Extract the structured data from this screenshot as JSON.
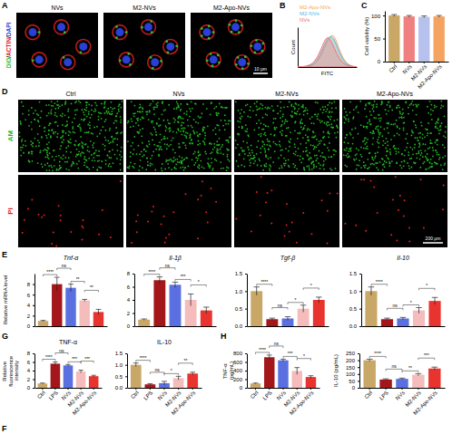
{
  "chart_data": [
    {
      "type": "image",
      "panel": "A",
      "titles": [
        "NVs",
        "M2-NVs",
        "M2-Apo-NVs"
      ],
      "stains": [
        {
          "name": "DiO",
          "color": "#33bb33"
        },
        {
          "name": "ACTIN",
          "color": "#e02020"
        },
        {
          "name": "DAPI",
          "color": "#2a3fd6"
        }
      ],
      "separator": "/",
      "scale_bar": "10 μm"
    },
    {
      "type": "line",
      "panel": "B",
      "xlabel": "FITC",
      "ylabel": "Count",
      "tick_labels": false,
      "legend": "upper left",
      "x": [
        0,
        10,
        20,
        30,
        40,
        50,
        60,
        70,
        80,
        90,
        100
      ],
      "xlim": [
        0,
        100
      ],
      "ylim": [
        0,
        100
      ],
      "series": [
        {
          "name": "M2-Apo-NVs",
          "color": "#f4a460",
          "values": [
            0,
            0,
            2,
            8,
            28,
            65,
            90,
            45,
            12,
            3,
            0
          ]
        },
        {
          "name": "M2-NVs",
          "color": "#4fb8e8",
          "values": [
            0,
            0,
            3,
            10,
            35,
            75,
            80,
            35,
            10,
            2,
            0
          ]
        },
        {
          "name": "NVs",
          "color": "#f07070",
          "values": [
            0,
            1,
            4,
            15,
            45,
            85,
            55,
            20,
            6,
            1,
            0
          ]
        }
      ]
    },
    {
      "type": "bar",
      "panel": "C",
      "ylabel": "Cell viability (%)",
      "categories": [
        "Ctrl",
        "NVs",
        "M2-NVs",
        "M2-Apo-NVs"
      ],
      "values": [
        100,
        98,
        97,
        98
      ],
      "errors": [
        2,
        2,
        2,
        2
      ],
      "colors": [
        "#c9a767",
        "#f08080",
        "#b6c1ee",
        "#f4a460"
      ],
      "ylim": [
        0,
        110
      ],
      "yticks": [
        0,
        50,
        100
      ]
    },
    {
      "type": "image",
      "panel": "D",
      "titles": [
        "Ctrl",
        "NVs",
        "M2-NVs",
        "M2-Apo-NVs"
      ],
      "rows": [
        {
          "name": "AM",
          "color": "#22b322"
        },
        {
          "name": "PI",
          "color": "#e0201b"
        }
      ],
      "scale_bar": "200 μm"
    },
    {
      "type": "bar",
      "panel": "E",
      "title": "Tnf-α",
      "ylabel": "Relative mRNA level",
      "tick_labels": "y",
      "categories": [
        null,
        null,
        null,
        null,
        null
      ],
      "values": [
        1,
        8,
        7.3,
        4.9,
        2.7
      ],
      "errors": [
        0.1,
        1.3,
        0.7,
        0.2,
        0.5
      ],
      "colors": [
        "#c9a767",
        "#a3161a",
        "#5a6fe0",
        "#f5bcbc",
        "#e8332e"
      ],
      "ylim": [
        0,
        10
      ],
      "yticks": [
        0,
        2,
        4,
        6,
        8
      ],
      "annotations": [
        "****",
        "ns",
        "**",
        "**"
      ]
    },
    {
      "type": "bar",
      "title": "Il-1β",
      "tick_labels": "y",
      "categories": [
        null,
        null,
        null,
        null,
        null
      ],
      "values": [
        1,
        7,
        6.3,
        4,
        2.4
      ],
      "errors": [
        0.1,
        0.5,
        0.4,
        0.9,
        0.5
      ],
      "colors": [
        "#c9a767",
        "#a3161a",
        "#5a6fe0",
        "#f5bcbc",
        "#e8332e"
      ],
      "ylim": [
        0,
        8
      ],
      "yticks": [
        0,
        2,
        4,
        6,
        8
      ],
      "annotations": [
        "****",
        "ns",
        "***",
        "*"
      ]
    },
    {
      "type": "bar",
      "title": "Tgf-β",
      "tick_labels": "y",
      "categories": [
        null,
        null,
        null,
        null,
        null
      ],
      "values": [
        1,
        0.2,
        0.22,
        0.5,
        0.75
      ],
      "errors": [
        0.12,
        0.03,
        0.05,
        0.1,
        0.08
      ],
      "colors": [
        "#c9a767",
        "#a3161a",
        "#5a6fe0",
        "#f5bcbc",
        "#e8332e"
      ],
      "ylim": [
        0,
        1.5
      ],
      "yticks": [
        {
          "value": 0,
          "label": "0.0"
        },
        {
          "value": 0.5,
          "label": "0.5"
        },
        {
          "value": 1,
          "label": "1.0"
        },
        {
          "value": 1.5,
          "label": "1.5"
        }
      ],
      "annotations": [
        "****",
        "ns",
        "*",
        "*"
      ]
    },
    {
      "type": "bar",
      "title": "Il-10",
      "tick_labels": "y",
      "categories": [
        null,
        null,
        null,
        null,
        null
      ],
      "values": [
        1,
        0.2,
        0.22,
        0.45,
        0.72
      ],
      "errors": [
        0.12,
        0.03,
        0.03,
        0.08,
        0.1
      ],
      "colors": [
        "#c9a767",
        "#a3161a",
        "#5a6fe0",
        "#f5bcbc",
        "#e8332e"
      ],
      "ylim": [
        0,
        1.5
      ],
      "yticks": [
        {
          "value": 0,
          "label": "0.0"
        },
        {
          "value": 0.5,
          "label": "0.5"
        },
        {
          "value": 1,
          "label": "1.0"
        },
        {
          "value": 1.5,
          "label": "1.5"
        }
      ],
      "annotations": [
        "****",
        "ns",
        "*",
        "*"
      ]
    },
    {
      "type": "bar",
      "panel": "G",
      "title": "TNF-α",
      "ylabel": "Relative fluorescence intensity",
      "categories": [
        "Ctrl",
        "LPS",
        "NVs",
        "M2-NVs",
        "M2-Apo-NVs"
      ],
      "values": [
        1,
        5.6,
        5.2,
        3.8,
        2.7
      ],
      "errors": [
        0.1,
        0.4,
        0.2,
        0.3,
        0.2
      ],
      "colors": [
        "#c9a767",
        "#a3161a",
        "#5a6fe0",
        "#f5bcbc",
        "#e8332e"
      ],
      "ylim": [
        0,
        8
      ],
      "yticks": [
        0,
        2,
        4,
        6,
        8
      ],
      "annotations": [
        "****",
        "ns",
        "***",
        "***"
      ]
    },
    {
      "type": "bar",
      "title": "IL-10",
      "categories": [
        "Ctrl",
        "LPS",
        "NVs",
        "M2-NVs",
        "M2-Apo-NVs"
      ],
      "values": [
        1,
        0.15,
        0.2,
        0.42,
        0.62
      ],
      "errors": [
        0.08,
        0.03,
        0.08,
        0.08,
        0.06
      ],
      "colors": [
        "#c9a767",
        "#a3161a",
        "#5a6fe0",
        "#f5bcbc",
        "#e8332e"
      ],
      "ylim": [
        0,
        1.5
      ],
      "yticks": [
        {
          "value": 0,
          "label": "0.0"
        },
        {
          "value": 0.5,
          "label": "0.5"
        },
        {
          "value": 1,
          "label": "1.0"
        },
        {
          "value": 1.5,
          "label": "1.5"
        }
      ],
      "annotations": [
        "****",
        "ns",
        "*",
        "**"
      ]
    },
    {
      "type": "bar",
      "panel": "H",
      "ylabel": "TNF-α (pg/mL)",
      "categories": [
        "Ctrl",
        "LPS",
        "NVs",
        "M2-NVs",
        "M2-Apo-NVs"
      ],
      "values": [
        100,
        710,
        640,
        390,
        250
      ],
      "errors": [
        10,
        50,
        25,
        80,
        30
      ],
      "colors": [
        "#c9a767",
        "#a3161a",
        "#5a6fe0",
        "#f5bcbc",
        "#e8332e"
      ],
      "ylim": [
        0,
        800
      ],
      "yticks": [
        0,
        200,
        400,
        600,
        800
      ],
      "annotations": [
        "****",
        "ns",
        "***",
        "*"
      ]
    },
    {
      "type": "bar",
      "ylabel": "IL-10 (pg/mL)",
      "categories": [
        "Ctrl",
        "LPS",
        "NVs",
        "M2-NVs",
        "M2-Apo-NVs"
      ],
      "values": [
        200,
        60,
        65,
        95,
        140
      ],
      "errors": [
        8,
        5,
        5,
        8,
        10
      ],
      "colors": [
        "#c9a767",
        "#a3161a",
        "#5a6fe0",
        "#f5bcbc",
        "#e8332e"
      ],
      "ylim": [
        0,
        250
      ],
      "yticks": [
        0,
        50,
        100,
        150,
        200,
        250
      ],
      "annotations": [
        "****",
        "ns",
        "**",
        "***"
      ]
    },
    {
      "type": "label",
      "panel": "F"
    }
  ]
}
